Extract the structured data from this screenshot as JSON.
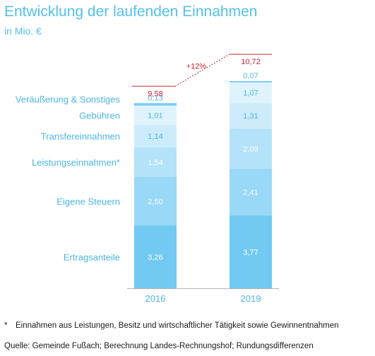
{
  "title": "Entwicklung der laufenden Einnahmen",
  "subtitle": "in Mio. €",
  "footnote": {
    "marker": "*",
    "text": "Einnahmen aus Leistungen, Besitz und wirtschaftlicher Tätigkeit sowie Gewinnentnahmen"
  },
  "source": "Quelle: Gemeinde Fußach; Berechnung Landes-Rechnungshof; Rundungsdifferenzen",
  "colors": {
    "title": "#53c0ec",
    "label": "#4cb6e2",
    "total": "#c8232c",
    "axis": "#b4b4b4",
    "segments": [
      "#72c9f2",
      "#99d8f6",
      "#b4e2f9",
      "#cdecfb",
      "#dff3fd",
      "#79cbf2"
    ],
    "segment_text": [
      "#ffffff",
      "#ffffff",
      "#ffffff",
      "#4cb6e2",
      "#4cb6e2",
      "#4cb6e2"
    ]
  },
  "chart_data": {
    "type": "bar",
    "stacked": true,
    "categories": [
      "2016",
      "2019"
    ],
    "series": [
      {
        "name": "Ertragsanteile",
        "values": [
          3.26,
          3.77
        ],
        "labels": [
          "3,26",
          "3,77"
        ]
      },
      {
        "name": "Eigene Steuern",
        "values": [
          2.5,
          2.41
        ],
        "labels": [
          "2,50",
          "2,41"
        ]
      },
      {
        "name": "Leistungseinnahmen*",
        "values": [
          1.54,
          2.09
        ],
        "labels": [
          "1,54",
          "2,09"
        ]
      },
      {
        "name": "Transfereinnahmen",
        "values": [
          1.14,
          1.31
        ],
        "labels": [
          "1,14",
          "1,31"
        ]
      },
      {
        "name": "Gebühren",
        "values": [
          1.01,
          1.07
        ],
        "labels": [
          "1,01",
          "1,07"
        ]
      },
      {
        "name": "Veräußerung & Sonstiges",
        "values": [
          0.13,
          0.07
        ],
        "labels": [
          "0,13",
          "0,07"
        ]
      }
    ],
    "totals": [
      9.58,
      10.72
    ],
    "total_labels": [
      "9,58",
      "10,72"
    ],
    "change_label": "+12%",
    "ylim": [
      0,
      10.72
    ],
    "grid": false,
    "legend": "left"
  }
}
